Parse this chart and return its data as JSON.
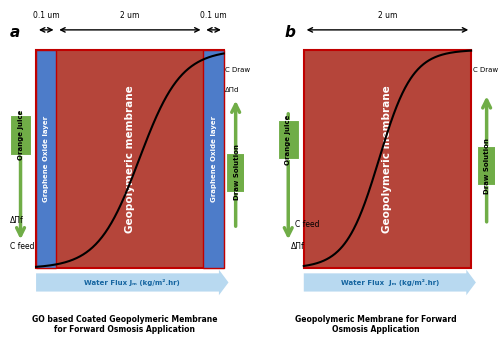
{
  "fig_width": 5.0,
  "fig_height": 3.38,
  "dpi": 100,
  "bg_color": "#ffffff",
  "membrane_red": "#b5453a",
  "go_layer_blue": "#4d7cc9",
  "arrow_blue_light": "#b8d9f0",
  "arrow_green": "#70ad47",
  "border_red": "#c00000",
  "panel_a": {
    "label": "a",
    "go_left_label": "Graphene Oxide layer",
    "geo_label": "Geopolymeric membrane",
    "go_right_label": "Graphene Oxide layer",
    "dim_top_center": "2 um",
    "dim_top_left": "0.1 um",
    "dim_top_right": "0.1 um",
    "left_arrow_label": "Orange Juice",
    "right_arrow_label": "Draw Solution",
    "c_draw": "C Draw",
    "delta_pi_d": "ΔΠd",
    "delta_pi_f": "ΔΠf",
    "c_feed": "C feed",
    "water_flux": "Water Flux Jₘ (kg/m².hr)",
    "caption": "GO based Coated Geopolymeric Membrane\nfor Forward Osmosis Application"
  },
  "panel_b": {
    "label": "b",
    "geo_label": "Geopolymeric membrane",
    "dim_top_center": "2 um",
    "left_arrow_label": "Orange Juice",
    "right_arrow_label": "Draw Solution",
    "c_draw": "C Draw",
    "delta_pi_f": "ΔΠf",
    "c_feed": "C feed",
    "water_flux": "Water Flux  Jₘ (kg/m².hr)",
    "caption": "Geopolymeric Membrane for Forward\nOsmosis Application"
  }
}
